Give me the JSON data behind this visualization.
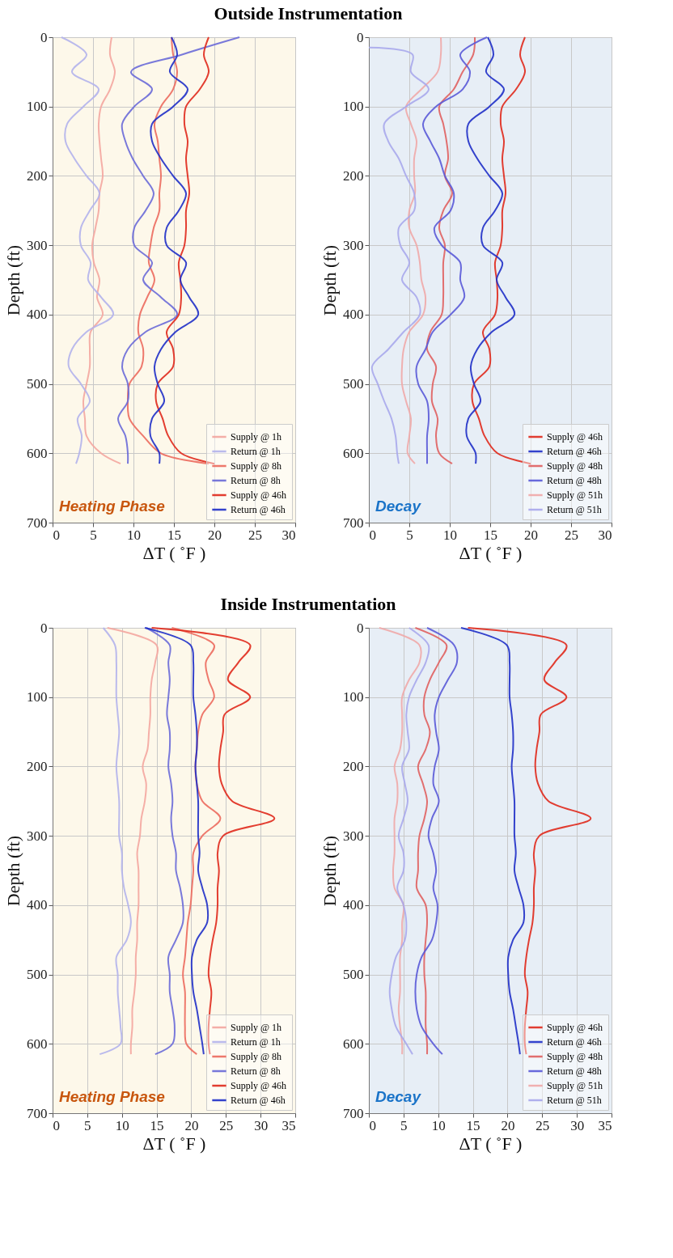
{
  "chart_data": [
    {
      "type": "line",
      "title": "Outside Instrumentation",
      "xlabel": "ΔT ( ˚F )",
      "ylabel": "Depth (ft)",
      "xlim": [
        0,
        30
      ],
      "xticks": [
        0,
        5,
        10,
        15,
        20,
        25,
        30
      ],
      "ylim": [
        700,
        0
      ],
      "yticks": [
        0,
        100,
        200,
        300,
        400,
        500,
        600,
        700
      ],
      "grid": true,
      "legend": "bottom right",
      "annotations": [
        "Heating Phase"
      ],
      "series": [
        {
          "name": "Supply @ 1h",
          "color": "#f4a6a0",
          "x": [
            7.3,
            7.1,
            7.7,
            7.1,
            6.0,
            5.7,
            5.8,
            6.0,
            6.2,
            5.8,
            5.7,
            5.3,
            4.9,
            5.1,
            5.8,
            5.5,
            6.2,
            4.7,
            4.6,
            4.6,
            4.2,
            3.8,
            4.0,
            4.2,
            6.0,
            8.4
          ],
          "values": [
            0,
            25,
            50,
            75,
            100,
            125,
            150,
            175,
            200,
            225,
            250,
            275,
            300,
            325,
            350,
            375,
            400,
            425,
            450,
            475,
            500,
            525,
            550,
            575,
            600,
            615
          ]
        },
        {
          "name": "Return @ 1h",
          "color": "#b3b3ec",
          "x": [
            1.1,
            4.2,
            2.4,
            5.7,
            3.8,
            1.8,
            1.6,
            2.7,
            4.2,
            5.8,
            4.6,
            3.5,
            3.5,
            4.7,
            4.4,
            6.0,
            7.5,
            4.2,
            2.4,
            2.0,
            3.5,
            4.6,
            3.1,
            3.6,
            3.3,
            2.9
          ],
          "values": [
            0,
            25,
            50,
            75,
            100,
            125,
            150,
            175,
            200,
            225,
            250,
            275,
            300,
            325,
            350,
            375,
            400,
            425,
            450,
            475,
            500,
            525,
            550,
            575,
            600,
            615
          ]
        },
        {
          "name": "Supply @ 8h",
          "color": "#ec6a5e",
          "x": [
            14.7,
            14.9,
            15.4,
            14.9,
            13.4,
            12.6,
            13.0,
            13.2,
            13.4,
            13.2,
            13.2,
            12.5,
            12.1,
            11.9,
            12.6,
            11.7,
            10.8,
            10.6,
            11.2,
            11.0,
            9.5,
            9.3,
            9.5,
            11.2,
            13.4,
            19.3
          ],
          "values": [
            0,
            25,
            50,
            75,
            100,
            125,
            150,
            175,
            200,
            225,
            250,
            275,
            300,
            325,
            350,
            375,
            400,
            425,
            450,
            475,
            500,
            525,
            550,
            575,
            600,
            615
          ]
        },
        {
          "name": "Return @ 8h",
          "color": "#6a6ad8",
          "x": [
            23.1,
            16.0,
            9.7,
            12.3,
            10.1,
            8.6,
            9.0,
            9.9,
            11.2,
            12.5,
            11.5,
            10.1,
            10.1,
            12.3,
            11.2,
            13.4,
            15.4,
            11.5,
            9.3,
            8.6,
            9.3,
            9.3,
            8.1,
            9.0,
            9.3,
            9.3
          ],
          "values": [
            0,
            25,
            50,
            75,
            100,
            125,
            150,
            175,
            200,
            225,
            250,
            275,
            300,
            325,
            350,
            375,
            400,
            425,
            450,
            475,
            500,
            525,
            550,
            575,
            600,
            615
          ]
        },
        {
          "name": "Supply @ 46h",
          "color": "#e0291c",
          "x": [
            19.3,
            18.7,
            19.3,
            18.2,
            16.5,
            16.3,
            16.7,
            16.5,
            16.7,
            16.9,
            16.5,
            16.5,
            16.3,
            15.6,
            15.8,
            15.9,
            15.6,
            14.1,
            14.9,
            14.9,
            13.0,
            12.8,
            13.6,
            14.3,
            15.9,
            20.0
          ],
          "values": [
            0,
            25,
            50,
            75,
            100,
            125,
            150,
            175,
            200,
            225,
            250,
            275,
            300,
            325,
            350,
            375,
            400,
            425,
            450,
            475,
            500,
            525,
            550,
            575,
            600,
            615
          ]
        },
        {
          "name": "Return @ 46h",
          "color": "#1f2fc8",
          "x": [
            14.7,
            15.4,
            14.5,
            16.7,
            14.9,
            12.3,
            12.3,
            13.4,
            14.9,
            16.5,
            15.6,
            14.1,
            14.1,
            16.5,
            15.8,
            16.9,
            18.0,
            15.2,
            13.4,
            12.6,
            13.0,
            13.8,
            12.3,
            12.1,
            13.2,
            13.2
          ],
          "values": [
            0,
            25,
            50,
            75,
            100,
            125,
            150,
            175,
            200,
            225,
            250,
            275,
            300,
            325,
            350,
            375,
            400,
            425,
            450,
            475,
            500,
            525,
            550,
            575,
            600,
            615
          ]
        }
      ]
    },
    {
      "type": "line",
      "xlabel": "ΔT ( ˚F )",
      "ylabel": "Depth (ft)",
      "xlim": [
        0,
        30
      ],
      "xticks": [
        0,
        5,
        10,
        15,
        20,
        25,
        30
      ],
      "ylim": [
        700,
        0
      ],
      "yticks": [
        0,
        100,
        200,
        300,
        400,
        500,
        600,
        700
      ],
      "grid": true,
      "legend": "bottom right",
      "annotations": [
        "Decay"
      ],
      "series": [
        {
          "name": "Supply @ 46h",
          "color": "#e0291c",
          "x": [
            19.3,
            18.7,
            19.3,
            18.2,
            16.5,
            16.3,
            16.7,
            16.5,
            16.7,
            16.9,
            16.5,
            16.5,
            16.3,
            15.6,
            15.8,
            15.9,
            15.6,
            14.1,
            14.9,
            14.9,
            13.0,
            12.8,
            13.6,
            14.3,
            15.9,
            20.0
          ],
          "values": [
            0,
            25,
            50,
            75,
            100,
            125,
            150,
            175,
            200,
            225,
            250,
            275,
            300,
            325,
            350,
            375,
            400,
            425,
            450,
            475,
            500,
            525,
            550,
            575,
            600,
            615
          ]
        },
        {
          "name": "Return @ 46h",
          "color": "#1f2fc8",
          "x": [
            14.7,
            15.4,
            14.5,
            16.7,
            14.9,
            12.3,
            12.3,
            13.4,
            14.9,
            16.5,
            15.6,
            14.1,
            14.1,
            16.5,
            15.8,
            16.9,
            18.0,
            15.2,
            13.4,
            12.6,
            13.0,
            13.8,
            12.3,
            12.1,
            13.2,
            13.2
          ],
          "values": [
            0,
            25,
            50,
            75,
            100,
            125,
            150,
            175,
            200,
            225,
            250,
            275,
            300,
            325,
            350,
            375,
            400,
            425,
            450,
            475,
            500,
            525,
            550,
            575,
            600,
            615
          ]
        },
        {
          "name": "Supply @ 48h",
          "color": "#e06060",
          "x": [
            13.1,
            12.9,
            11.6,
            10.5,
            8.7,
            9.2,
            9.6,
            9.8,
            9.4,
            10.3,
            9.2,
            8.7,
            9.4,
            9.2,
            9.2,
            9.2,
            9.0,
            7.6,
            7.2,
            8.3,
            7.9,
            7.8,
            8.5,
            8.3,
            8.7,
            10.3
          ],
          "values": [
            0,
            25,
            50,
            75,
            100,
            125,
            150,
            175,
            200,
            225,
            250,
            275,
            300,
            325,
            350,
            375,
            400,
            425,
            450,
            475,
            500,
            525,
            550,
            575,
            600,
            615
          ]
        },
        {
          "name": "Return @ 48h",
          "color": "#5a5ad8",
          "x": [
            14.6,
            11.3,
            12.5,
            11.6,
            8.3,
            6.7,
            7.6,
            8.7,
            9.4,
            10.5,
            10.1,
            8.1,
            9.0,
            11.3,
            11.3,
            11.8,
            10.1,
            7.9,
            7.0,
            5.9,
            6.1,
            7.2,
            7.4,
            7.2,
            7.2,
            7.2
          ],
          "values": [
            0,
            25,
            50,
            75,
            100,
            125,
            150,
            175,
            200,
            225,
            250,
            275,
            300,
            325,
            350,
            375,
            400,
            425,
            450,
            475,
            500,
            525,
            550,
            575,
            600,
            615
          ]
        },
        {
          "name": "Supply @ 51h",
          "color": "#f0a8a8",
          "x": [
            8.9,
            8.9,
            8.5,
            6.5,
            4.6,
            5.2,
            5.9,
            5.6,
            5.6,
            5.7,
            5.0,
            5.0,
            5.9,
            6.3,
            6.5,
            7.0,
            6.7,
            5.0,
            4.3,
            4.1,
            4.1,
            4.6,
            5.2,
            5.0,
            4.8,
            5.7
          ],
          "values": [
            0,
            25,
            50,
            75,
            100,
            125,
            150,
            175,
            200,
            225,
            250,
            275,
            300,
            325,
            350,
            375,
            400,
            425,
            450,
            475,
            500,
            525,
            550,
            575,
            600,
            615
          ]
        },
        {
          "name": "Return @ 51h",
          "color": "#a8a8ec",
          "x": [
            0.0,
            5.4,
            5.2,
            7.4,
            4.6,
            1.9,
            2.4,
            3.7,
            4.6,
            5.6,
            5.6,
            3.7,
            3.9,
            5.0,
            4.1,
            5.9,
            6.3,
            4.3,
            2.4,
            0.4,
            1.1,
            1.9,
            2.8,
            3.3,
            3.5,
            3.7
          ],
          "values": [
            15,
            25,
            50,
            75,
            100,
            125,
            150,
            175,
            200,
            225,
            250,
            275,
            300,
            325,
            350,
            375,
            400,
            425,
            450,
            475,
            500,
            525,
            550,
            575,
            600,
            615
          ]
        }
      ]
    },
    {
      "type": "line",
      "title": "Inside Instrumentation",
      "xlabel": "ΔT ( ˚F )",
      "ylabel": "Depth (ft)",
      "xlim": [
        0,
        35
      ],
      "xticks": [
        0,
        5,
        10,
        15,
        20,
        25,
        30,
        35
      ],
      "ylim": [
        700,
        0
      ],
      "yticks": [
        0,
        100,
        200,
        300,
        400,
        500,
        600,
        700
      ],
      "grid": true,
      "legend": "bottom right",
      "annotations": [
        "Heating Phase"
      ],
      "series": [
        {
          "name": "Supply @ 1h",
          "color": "#f4a6a0",
          "x": [
            7.9,
            15.0,
            14.8,
            14.3,
            14.1,
            14.1,
            13.9,
            13.7,
            13.0,
            13.5,
            13.3,
            12.8,
            12.6,
            12.2,
            12.4,
            12.4,
            12.4,
            12.2,
            12.2,
            12.0,
            12.0,
            11.8,
            11.5,
            11.5,
            11.3,
            11.3
          ],
          "values": [
            0,
            25,
            50,
            75,
            100,
            125,
            150,
            175,
            200,
            225,
            250,
            275,
            300,
            325,
            350,
            375,
            400,
            425,
            450,
            475,
            500,
            525,
            550,
            575,
            600,
            615
          ]
        },
        {
          "name": "Return @ 1h",
          "color": "#b3b3ec",
          "x": [
            7.3,
            9.0,
            9.2,
            9.2,
            9.2,
            9.4,
            9.6,
            9.4,
            9.2,
            9.4,
            9.6,
            9.6,
            9.6,
            10.0,
            10.0,
            10.3,
            10.9,
            11.3,
            10.7,
            9.2,
            9.4,
            9.4,
            9.6,
            9.8,
            9.8,
            6.8
          ],
          "values": [
            0,
            25,
            50,
            75,
            100,
            125,
            150,
            175,
            200,
            225,
            250,
            275,
            300,
            325,
            350,
            375,
            400,
            425,
            450,
            475,
            500,
            525,
            550,
            575,
            600,
            615
          ]
        },
        {
          "name": "Supply @ 8h",
          "color": "#ec6a5e",
          "x": [
            17.2,
            23.3,
            22.1,
            22.5,
            23.3,
            21.6,
            21.0,
            20.8,
            20.6,
            20.8,
            21.6,
            24.2,
            21.6,
            20.3,
            20.3,
            20.1,
            19.9,
            19.5,
            19.3,
            19.1,
            18.8,
            19.1,
            19.1,
            19.1,
            19.3,
            20.8
          ],
          "values": [
            0,
            25,
            50,
            75,
            100,
            125,
            150,
            175,
            200,
            225,
            250,
            275,
            300,
            325,
            350,
            375,
            400,
            425,
            450,
            475,
            500,
            525,
            550,
            575,
            600,
            615
          ]
        },
        {
          "name": "Return @ 8h",
          "color": "#6a6ad8",
          "x": [
            13.5,
            16.9,
            16.7,
            16.9,
            16.7,
            16.5,
            16.9,
            16.9,
            16.7,
            17.1,
            17.3,
            17.1,
            17.3,
            17.8,
            17.8,
            18.4,
            18.8,
            18.8,
            17.8,
            16.7,
            16.9,
            16.9,
            17.3,
            17.6,
            17.3,
            14.8
          ],
          "values": [
            0,
            25,
            50,
            75,
            100,
            125,
            150,
            175,
            200,
            225,
            250,
            275,
            300,
            325,
            350,
            375,
            400,
            425,
            450,
            475,
            500,
            525,
            550,
            575,
            600,
            615
          ]
        },
        {
          "name": "Supply @ 46h",
          "color": "#e0291c",
          "x": [
            14.3,
            28.5,
            26.8,
            25.3,
            28.5,
            24.8,
            24.6,
            24.2,
            24.0,
            24.4,
            25.9,
            32.0,
            24.6,
            23.8,
            24.0,
            23.8,
            23.8,
            23.6,
            23.1,
            22.7,
            22.5,
            22.9,
            22.7,
            22.5,
            22.5,
            22.7
          ],
          "values": [
            0,
            25,
            50,
            75,
            100,
            125,
            150,
            175,
            200,
            225,
            250,
            275,
            300,
            325,
            350,
            375,
            400,
            425,
            450,
            475,
            500,
            525,
            550,
            575,
            600,
            615
          ]
        },
        {
          "name": "Return @ 46h",
          "color": "#1f2fc8",
          "x": [
            13.3,
            19.9,
            20.3,
            20.3,
            20.3,
            20.6,
            20.8,
            20.8,
            20.6,
            20.8,
            21.0,
            21.0,
            21.0,
            21.2,
            21.0,
            21.6,
            22.3,
            22.3,
            20.8,
            20.1,
            20.1,
            20.3,
            20.8,
            21.2,
            21.6,
            21.8
          ],
          "values": [
            0,
            25,
            50,
            75,
            100,
            125,
            150,
            175,
            200,
            225,
            250,
            275,
            300,
            325,
            350,
            375,
            400,
            425,
            450,
            475,
            500,
            525,
            550,
            575,
            600,
            615
          ]
        }
      ]
    },
    {
      "type": "line",
      "xlabel": "ΔT ( ˚F )",
      "ylabel": "Depth (ft)",
      "xlim": [
        0,
        35
      ],
      "xticks": [
        0,
        5,
        10,
        15,
        20,
        25,
        30,
        35
      ],
      "ylim": [
        700,
        0
      ],
      "yticks": [
        0,
        100,
        200,
        300,
        400,
        500,
        600,
        700
      ],
      "grid": true,
      "legend": "bottom right",
      "annotations": [
        "Decay"
      ],
      "series": [
        {
          "name": "Supply @ 46h",
          "color": "#e0291c",
          "x": [
            14.3,
            28.5,
            26.8,
            25.3,
            28.5,
            24.8,
            24.6,
            24.2,
            24.0,
            24.4,
            25.9,
            32.0,
            24.6,
            23.8,
            24.0,
            23.8,
            23.8,
            23.6,
            23.1,
            22.7,
            22.5,
            22.9,
            22.7,
            22.5,
            22.5,
            22.7
          ],
          "values": [
            0,
            25,
            50,
            75,
            100,
            125,
            150,
            175,
            200,
            225,
            250,
            275,
            300,
            325,
            350,
            375,
            400,
            425,
            450,
            475,
            500,
            525,
            550,
            575,
            600,
            615
          ]
        },
        {
          "name": "Return @ 46h",
          "color": "#1f2fc8",
          "x": [
            13.3,
            19.9,
            20.3,
            20.3,
            20.3,
            20.6,
            20.8,
            20.8,
            20.6,
            20.8,
            21.0,
            21.0,
            21.0,
            21.2,
            21.0,
            21.6,
            22.3,
            22.3,
            20.8,
            20.1,
            20.1,
            20.3,
            20.8,
            21.2,
            21.6,
            21.8
          ],
          "values": [
            0,
            25,
            50,
            75,
            100,
            125,
            150,
            175,
            200,
            225,
            250,
            275,
            300,
            325,
            350,
            375,
            400,
            425,
            450,
            475,
            500,
            525,
            550,
            575,
            600,
            615
          ]
        },
        {
          "name": "Supply @ 48h",
          "color": "#e06060",
          "x": [
            6.7,
            11.2,
            10.1,
            8.8,
            8.0,
            8.0,
            8.8,
            8.2,
            7.1,
            7.8,
            8.4,
            8.0,
            7.3,
            7.1,
            7.1,
            6.9,
            8.2,
            8.4,
            8.2,
            8.0,
            8.0,
            8.2,
            8.2,
            8.2,
            8.4,
            8.4
          ],
          "values": [
            0,
            25,
            50,
            75,
            100,
            125,
            150,
            175,
            200,
            225,
            250,
            275,
            300,
            325,
            350,
            375,
            400,
            425,
            450,
            475,
            500,
            525,
            550,
            575,
            600,
            615
          ]
        },
        {
          "name": "Return @ 48h",
          "color": "#5a5ad8",
          "x": [
            8.4,
            12.3,
            12.7,
            11.4,
            10.1,
            9.5,
            9.7,
            10.1,
            9.5,
            9.3,
            10.1,
            9.1,
            8.6,
            9.3,
            9.7,
            9.3,
            9.9,
            9.7,
            9.1,
            7.6,
            6.9,
            6.7,
            6.9,
            7.6,
            9.3,
            10.6
          ],
          "values": [
            0,
            25,
            50,
            75,
            100,
            125,
            150,
            175,
            200,
            225,
            250,
            275,
            300,
            325,
            350,
            375,
            400,
            425,
            450,
            475,
            500,
            525,
            550,
            575,
            600,
            615
          ]
        },
        {
          "name": "Supply @ 51h",
          "color": "#f0a8a8",
          "x": [
            1.5,
            7.3,
            7.3,
            5.8,
            4.8,
            4.8,
            4.8,
            4.5,
            3.7,
            4.1,
            4.1,
            3.7,
            3.7,
            3.7,
            3.5,
            3.7,
            5.0,
            4.8,
            4.8,
            4.5,
            4.5,
            4.5,
            4.3,
            4.5,
            4.8,
            4.8
          ],
          "values": [
            0,
            25,
            50,
            75,
            100,
            125,
            150,
            175,
            200,
            225,
            250,
            275,
            300,
            325,
            350,
            375,
            400,
            425,
            450,
            475,
            500,
            525,
            550,
            575,
            600,
            615
          ]
        },
        {
          "name": "Return @ 51h",
          "color": "#a8a8ec",
          "x": [
            5.8,
            8.6,
            8.2,
            6.9,
            5.8,
            5.4,
            5.6,
            5.8,
            4.8,
            5.2,
            5.6,
            5.0,
            4.3,
            5.0,
            5.0,
            4.1,
            5.0,
            5.4,
            5.2,
            3.9,
            3.3,
            3.0,
            3.3,
            3.9,
            5.4,
            6.3
          ],
          "values": [
            0,
            25,
            50,
            75,
            100,
            125,
            150,
            175,
            200,
            225,
            250,
            275,
            300,
            325,
            350,
            375,
            400,
            425,
            450,
            475,
            500,
            525,
            550,
            575,
            600,
            615
          ]
        }
      ]
    }
  ]
}
